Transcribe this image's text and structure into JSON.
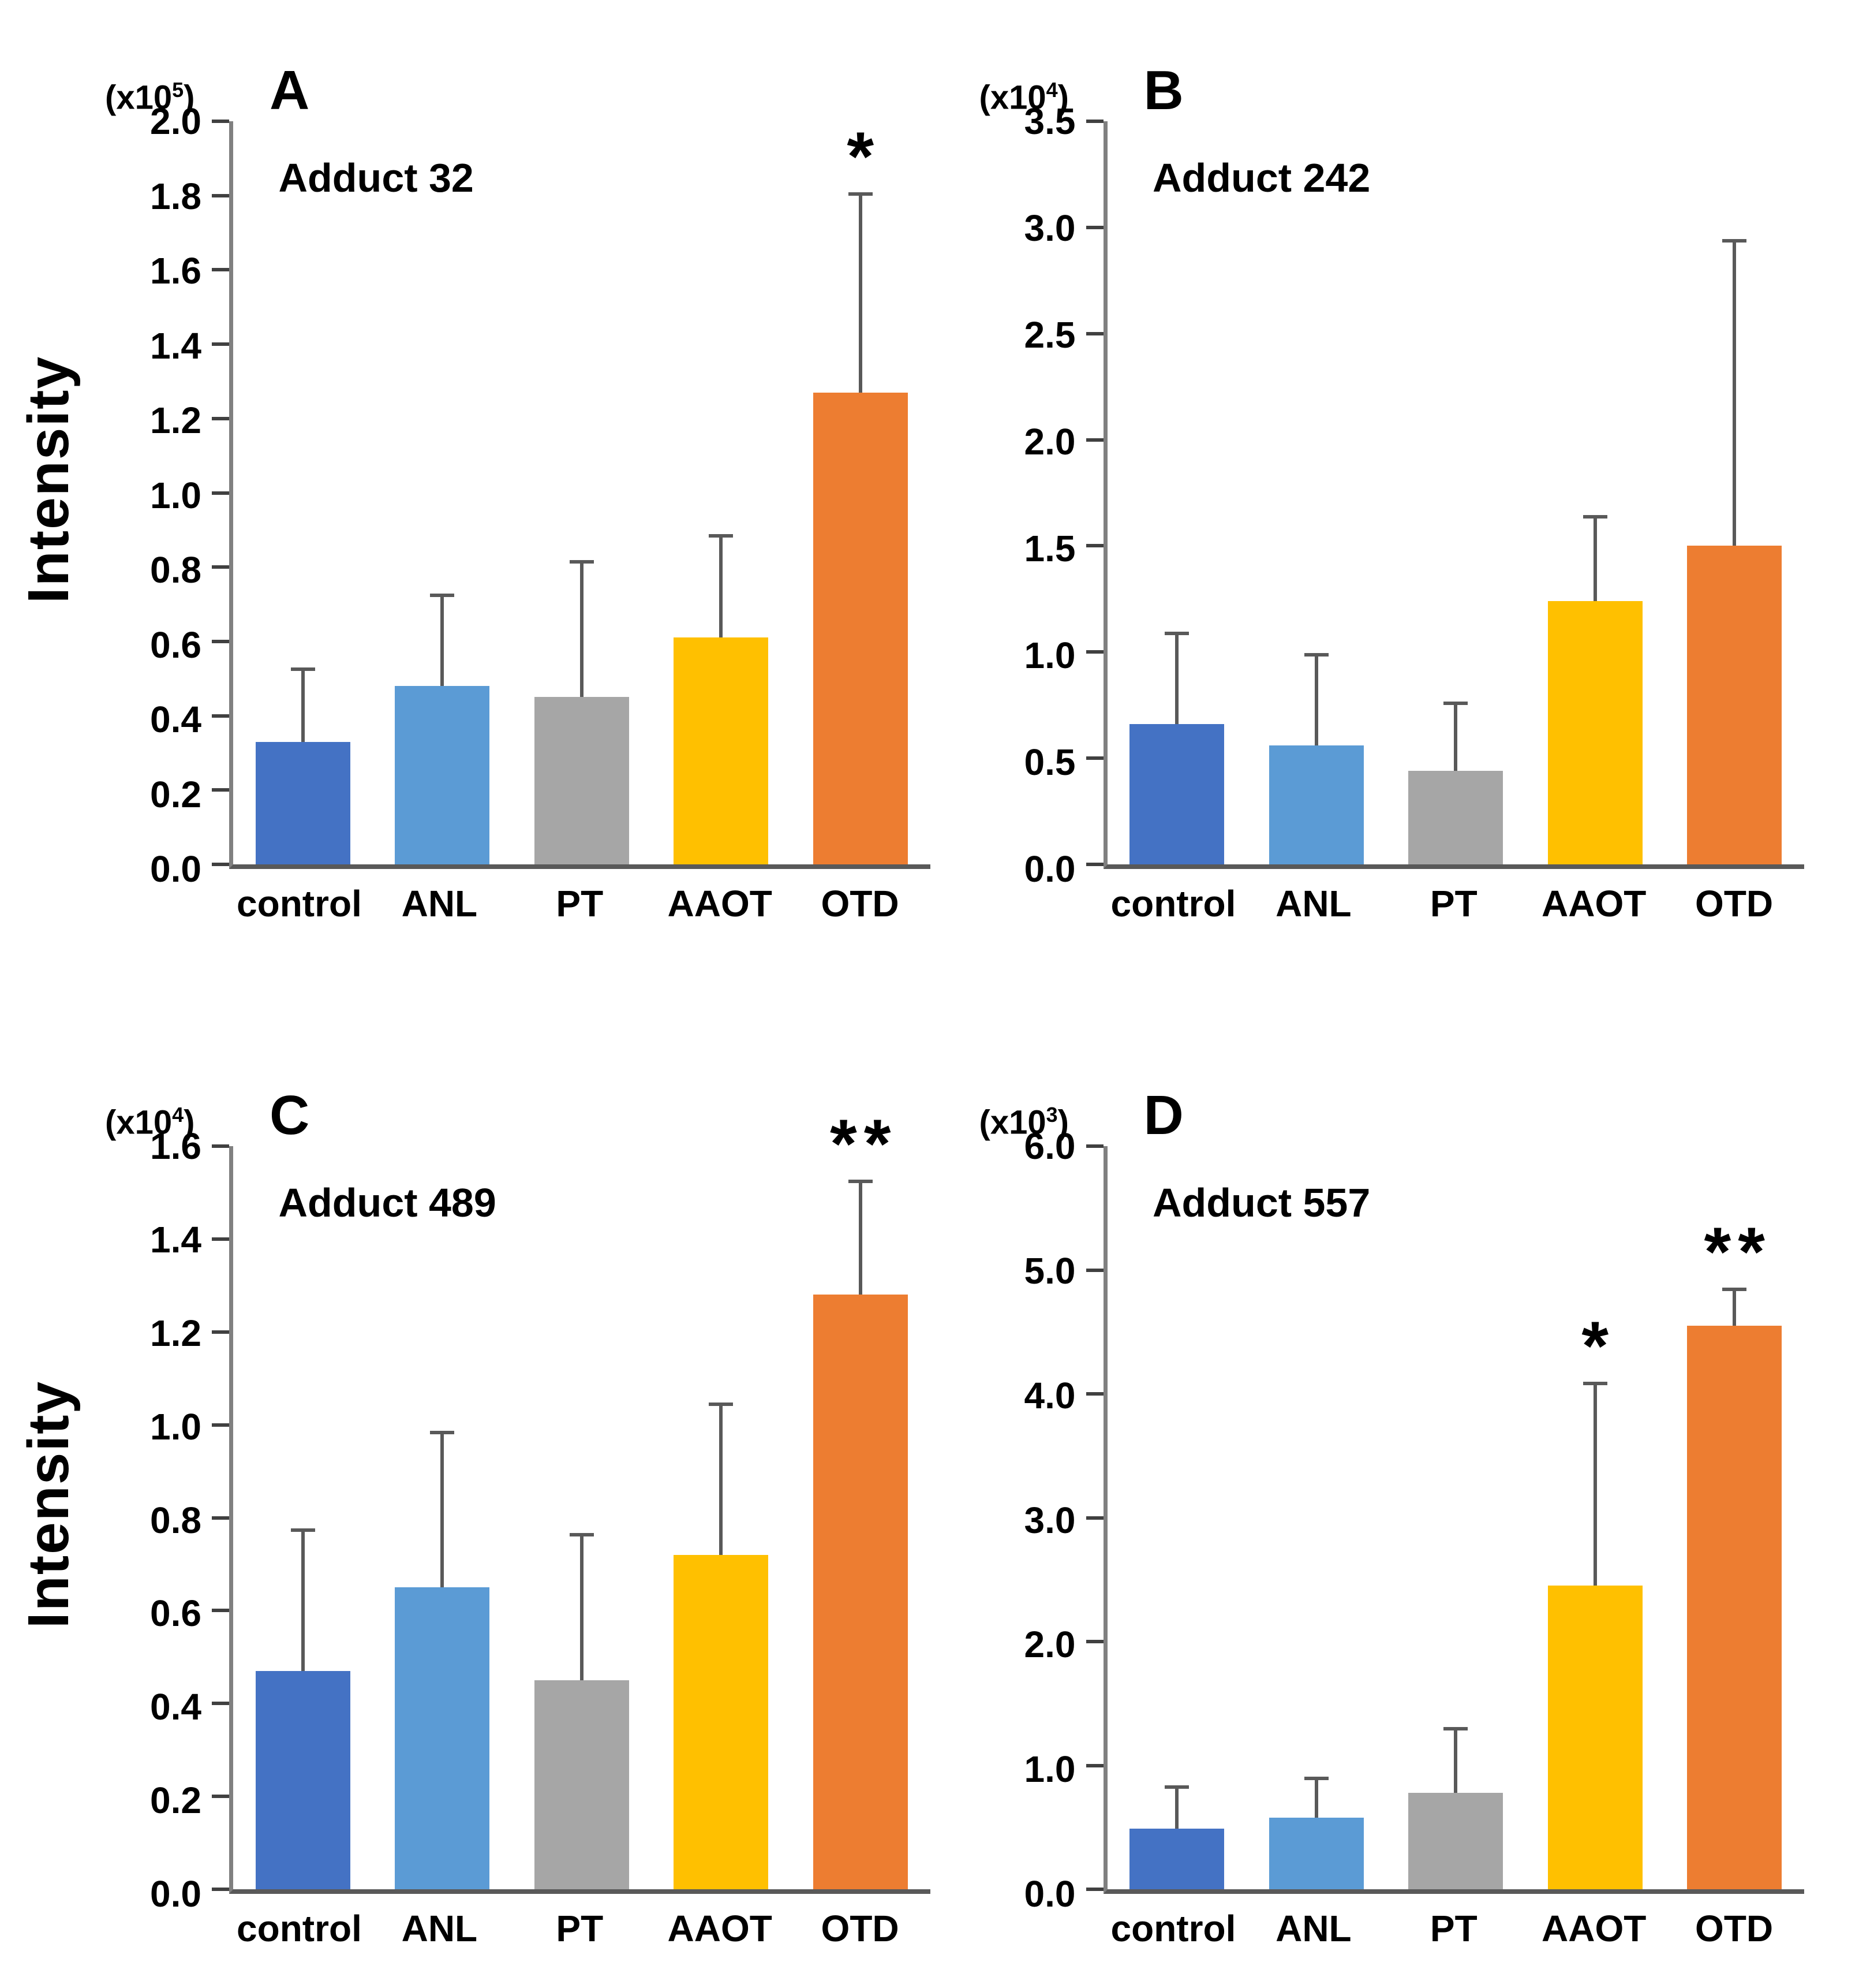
{
  "figure": {
    "ylabel": "Intensity"
  },
  "colors": {
    "bars": [
      "#4472C4",
      "#5B9BD5",
      "#A6A6A6",
      "#FFC000",
      "#ED7D31"
    ],
    "axis": "#808080",
    "baseline": "#595959",
    "tick": "#404040",
    "error": "#595959",
    "text": "#000000"
  },
  "chart_data": [
    {
      "type": "bar",
      "panel_letter": "A",
      "scale_label": {
        "prefix": "(x10",
        "exponent": "5",
        "suffix": ")"
      },
      "title": "Adduct 32",
      "ylabel": "Intensity",
      "xlabel": "",
      "ylim": [
        0,
        2.0
      ],
      "yticks": [
        "2.0",
        "1.8",
        "1.6",
        "1.4",
        "1.2",
        "1.0",
        "0.8",
        "0.6",
        "0.4",
        "0.2",
        "0.0"
      ],
      "categories": [
        "control",
        "ANL",
        "PT",
        "AAOT",
        "OTD"
      ],
      "values": [
        0.33,
        0.48,
        0.45,
        0.61,
        1.27
      ],
      "upper_errors": [
        0.19,
        0.24,
        0.36,
        0.27,
        0.53
      ],
      "significance": [
        "",
        "",
        "",
        "",
        "*"
      ],
      "legend": "none",
      "grid": false
    },
    {
      "type": "bar",
      "panel_letter": "B",
      "scale_label": {
        "prefix": "(x10",
        "exponent": "4",
        "suffix": ")"
      },
      "title": "Adduct 242",
      "ylabel": "Intensity",
      "xlabel": "",
      "ylim": [
        0,
        3.5
      ],
      "yticks": [
        "3.5",
        "3.0",
        "2.5",
        "2.0",
        "1.5",
        "1.0",
        "0.5",
        "0.0"
      ],
      "categories": [
        "control",
        "ANL",
        "PT",
        "AAOT",
        "OTD"
      ],
      "values": [
        0.66,
        0.56,
        0.44,
        1.24,
        1.5
      ],
      "upper_errors": [
        0.42,
        0.42,
        0.31,
        0.39,
        1.43
      ],
      "significance": [
        "",
        "",
        "",
        "",
        ""
      ],
      "legend": "none",
      "grid": false
    },
    {
      "type": "bar",
      "panel_letter": "C",
      "scale_label": {
        "prefix": "(x10",
        "exponent": "4",
        "suffix": ")"
      },
      "title": "Adduct 489",
      "ylabel": "Intensity",
      "xlabel": "",
      "ylim": [
        0,
        1.6
      ],
      "yticks": [
        "1.6",
        "1.4",
        "1.2",
        "1.0",
        "0.8",
        "0.6",
        "0.4",
        "0.2",
        "0.0"
      ],
      "categories": [
        "control",
        "ANL",
        "PT",
        "AAOT",
        "OTD"
      ],
      "values": [
        0.47,
        0.65,
        0.45,
        0.72,
        1.28
      ],
      "upper_errors": [
        0.3,
        0.33,
        0.31,
        0.32,
        0.24
      ],
      "significance": [
        "",
        "",
        "",
        "",
        "**"
      ],
      "legend": "none",
      "grid": false
    },
    {
      "type": "bar",
      "panel_letter": "D",
      "scale_label": {
        "prefix": "(x10",
        "exponent": "3",
        "suffix": ")"
      },
      "title": "Adduct 557",
      "ylabel": "Intensity",
      "xlabel": "",
      "ylim": [
        0,
        6.0
      ],
      "yticks": [
        "6.0",
        "5.0",
        "4.0",
        "3.0",
        "2.0",
        "1.0",
        "0.0"
      ],
      "categories": [
        "control",
        "ANL",
        "PT",
        "AAOT",
        "OTD"
      ],
      "values": [
        0.49,
        0.58,
        0.78,
        2.45,
        4.55
      ],
      "upper_errors": [
        0.32,
        0.3,
        0.5,
        1.62,
        0.28
      ],
      "significance": [
        "",
        "",
        "",
        "*",
        "**"
      ],
      "legend": "none",
      "grid": false
    }
  ]
}
